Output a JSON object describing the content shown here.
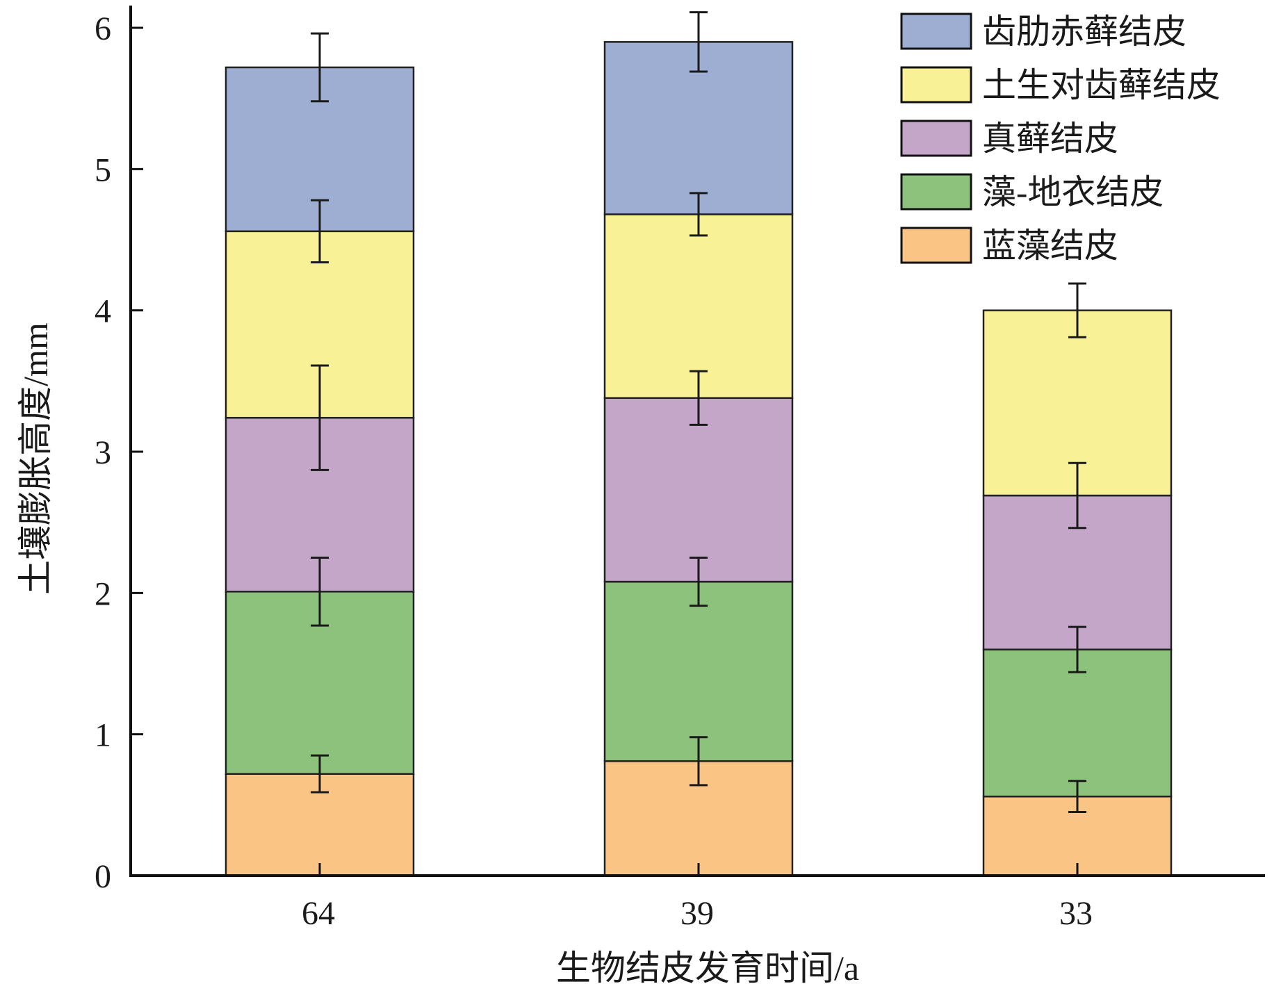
{
  "chart_data": {
    "type": "bar",
    "stacked": true,
    "categories": [
      "64",
      "39",
      "33"
    ],
    "xlabel": "生物结皮发育时间/a",
    "ylabel": "土壤膨胀高度/mm",
    "ylim": [
      0,
      6
    ],
    "yticks": [
      "0",
      "1",
      "2",
      "3",
      "4",
      "5",
      "6"
    ],
    "grid": false,
    "legend_position": "top-right",
    "series": [
      {
        "name": "蓝藻结皮",
        "color": "#fac584",
        "values": [
          0.72,
          0.81,
          0.56
        ],
        "errors": [
          0.13,
          0.17,
          0.11
        ]
      },
      {
        "name": "藻-地衣结皮",
        "color": "#8dc27c",
        "values": [
          1.29,
          1.27,
          1.04
        ],
        "errors": [
          0.24,
          0.17,
          0.16
        ]
      },
      {
        "name": "真藓结皮",
        "color": "#c4a6c8",
        "values": [
          1.23,
          1.3,
          1.09
        ],
        "errors": [
          0.37,
          0.19,
          0.23
        ]
      },
      {
        "name": "土生对齿藓结皮",
        "color": "#f8f195",
        "values": [
          1.32,
          1.3,
          1.31
        ],
        "errors": [
          0.22,
          0.15,
          0.19
        ]
      },
      {
        "name": "齿肋赤藓结皮",
        "color": "#9daed2",
        "values": [
          1.16,
          1.22,
          0
        ],
        "errors": [
          0.24,
          0.21,
          0
        ]
      }
    ]
  }
}
